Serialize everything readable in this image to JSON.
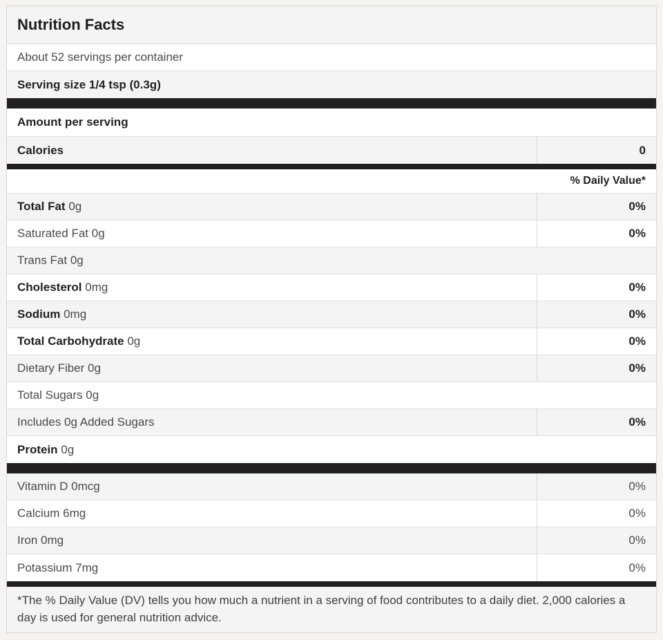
{
  "label": {
    "title": "Nutrition Facts",
    "servings_per_container": "About 52 servings per container",
    "serving_size": "Serving size 1/4 tsp (0.3g)",
    "amount_per_serving": "Amount per serving",
    "calories": {
      "label": "Calories",
      "value": "0"
    },
    "daily_value_header": "% Daily Value*",
    "nutrients": [
      {
        "name": "Total Fat",
        "amount": "0g",
        "daily_value": "0%"
      },
      {
        "name": "Saturated Fat",
        "amount": "0g",
        "daily_value": "0%"
      },
      {
        "name": "Trans Fat",
        "amount": "0g",
        "daily_value": ""
      },
      {
        "name": "Cholesterol",
        "amount": "0mg",
        "daily_value": "0%"
      },
      {
        "name": "Sodium",
        "amount": "0mg",
        "daily_value": "0%"
      },
      {
        "name": "Total Carbohydrate",
        "amount": "0g",
        "daily_value": "0%"
      },
      {
        "name": "Dietary Fiber",
        "amount": "0g",
        "daily_value": "0%"
      },
      {
        "name": "Total Sugars",
        "amount": "0g",
        "daily_value": ""
      },
      {
        "name": "Includes 0g Added Sugars",
        "amount": "",
        "daily_value": "0%"
      },
      {
        "name": "Protein",
        "amount": "0g",
        "daily_value": ""
      }
    ],
    "vitamins": [
      {
        "name": "Vitamin D",
        "amount": "0mcg",
        "daily_value": "0%"
      },
      {
        "name": "Calcium",
        "amount": "6mg",
        "daily_value": "0%"
      },
      {
        "name": "Iron",
        "amount": "0mg",
        "daily_value": "0%"
      },
      {
        "name": "Potassium",
        "amount": "7mg",
        "daily_value": "0%"
      }
    ],
    "footnote": "*The % Daily Value (DV) tells you how much a nutrient in a serving of food contributes to a daily diet. 2,000 calories a day is used for general nutrition advice."
  },
  "colors": {
    "page_background": "#f6f4f1",
    "row_alt_background": "#f4f4f4",
    "divider_bar": "#221f20",
    "border": "#d8d8d8",
    "text_bold": "#212121",
    "text_regular": "#4a4a4a"
  }
}
